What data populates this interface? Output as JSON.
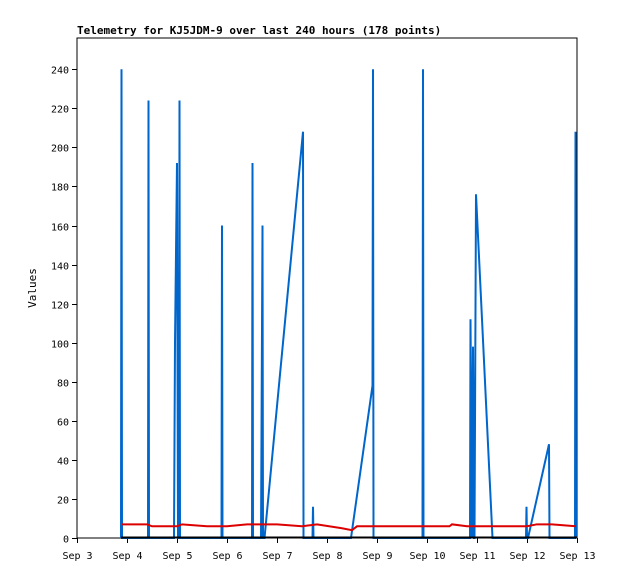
{
  "chart_data": {
    "type": "line",
    "title": "Telemetry for KJ5JDM-9 over last 240 hours (178 points)",
    "xlabel": "",
    "ylabel": "Values",
    "x_tick_labels": [
      "Sep 3",
      "Sep 4",
      "Sep 5",
      "Sep 6",
      "Sep 7",
      "Sep 8",
      "Sep 9",
      "Sep 10",
      "Sep 11",
      "Sep 12",
      "Sep 13"
    ],
    "y_ticks": [
      0,
      20,
      40,
      60,
      80,
      100,
      120,
      140,
      160,
      180,
      200,
      220,
      240
    ],
    "xlim": [
      0,
      10
    ],
    "ylim": [
      0,
      256
    ],
    "grid": false,
    "legend": "none",
    "colors": {
      "series_blue": "#0066cc",
      "series_red": "#dd0000",
      "baseline": "#000000",
      "frame": "#000000"
    },
    "series": [
      {
        "color": "#0066cc",
        "points": [
          [
            0.88,
            0
          ],
          [
            0.89,
            240
          ],
          [
            0.9,
            0
          ],
          [
            1.42,
            0
          ],
          [
            1.43,
            224
          ],
          [
            1.44,
            0
          ],
          [
            1.94,
            0
          ],
          [
            1.96,
            100
          ],
          [
            2.0,
            192
          ],
          [
            2.02,
            0
          ],
          [
            2.04,
            0
          ],
          [
            2.05,
            224
          ],
          [
            2.06,
            0
          ],
          [
            2.89,
            0
          ],
          [
            2.9,
            160
          ],
          [
            2.91,
            0
          ],
          [
            3.5,
            0
          ],
          [
            3.51,
            192
          ],
          [
            3.52,
            0
          ],
          [
            3.68,
            0
          ],
          [
            3.71,
            160
          ],
          [
            3.72,
            0
          ],
          [
            3.75,
            0
          ],
          [
            4.52,
            208
          ],
          [
            4.53,
            0
          ],
          [
            4.71,
            0
          ],
          [
            4.72,
            16
          ],
          [
            4.73,
            0
          ],
          [
            5.48,
            0
          ],
          [
            5.91,
            78
          ],
          [
            5.92,
            240
          ],
          [
            5.93,
            0
          ],
          [
            6.91,
            0
          ],
          [
            6.92,
            240
          ],
          [
            6.93,
            0
          ],
          [
            7.86,
            0
          ],
          [
            7.87,
            112
          ],
          [
            7.9,
            0
          ],
          [
            7.92,
            98
          ],
          [
            7.94,
            0
          ],
          [
            7.95,
            0
          ],
          [
            7.98,
            176
          ],
          [
            8.31,
            0
          ],
          [
            8.98,
            0
          ],
          [
            8.99,
            16
          ],
          [
            9.0,
            0
          ],
          [
            9.02,
            0
          ],
          [
            9.44,
            48
          ],
          [
            9.45,
            0
          ],
          [
            9.96,
            0
          ],
          [
            9.97,
            208
          ],
          [
            9.98,
            0
          ]
        ]
      },
      {
        "color": "#dd0000",
        "points": [
          [
            0.9,
            7
          ],
          [
            1.4,
            7
          ],
          [
            1.5,
            6
          ],
          [
            2.0,
            6
          ],
          [
            2.1,
            7
          ],
          [
            2.6,
            6
          ],
          [
            3.0,
            6
          ],
          [
            3.4,
            7
          ],
          [
            3.5,
            7
          ],
          [
            4.0,
            7
          ],
          [
            4.5,
            6
          ],
          [
            4.8,
            7
          ],
          [
            5.3,
            5
          ],
          [
            5.5,
            4
          ],
          [
            5.6,
            6
          ],
          [
            6.0,
            6
          ],
          [
            6.5,
            6
          ],
          [
            7.0,
            6
          ],
          [
            7.45,
            6
          ],
          [
            7.5,
            7
          ],
          [
            7.8,
            6
          ],
          [
            8.0,
            6
          ],
          [
            8.5,
            6
          ],
          [
            9.0,
            6
          ],
          [
            9.2,
            7
          ],
          [
            9.5,
            7
          ],
          [
            9.98,
            6
          ]
        ]
      }
    ]
  }
}
